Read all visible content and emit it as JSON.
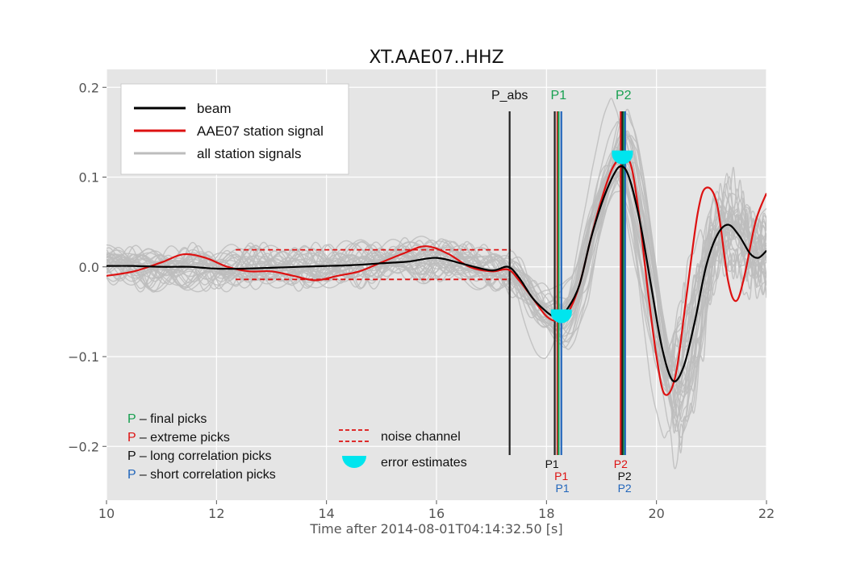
{
  "chart_data": {
    "type": "line",
    "title": "XT.AAE07..HHZ",
    "xlabel": "Time after 2014-08-01T04:14:32.50 [s]",
    "ylabel": "",
    "xlim": [
      10,
      22
    ],
    "ylim": [
      -0.26,
      0.22
    ],
    "xticks": [
      "10",
      "12",
      "14",
      "16",
      "18",
      "20",
      "22"
    ],
    "yticks": [
      "0.2",
      "0.1",
      "0.0",
      "−0.1",
      "−0.2"
    ],
    "grid": true,
    "legend_placement": "upper-left",
    "legend": [
      {
        "label": "beam",
        "color": "#000000"
      },
      {
        "label": "AAE07 station signal",
        "color": "#dd1111"
      },
      {
        "label": "all station signals",
        "color": "#bdbdbd"
      }
    ],
    "series": [
      {
        "name": "beam",
        "color": "#000000",
        "x": [
          10.0,
          10.5,
          11.0,
          11.5,
          12.0,
          12.5,
          13.0,
          13.5,
          14.0,
          14.5,
          15.0,
          15.5,
          16.0,
          16.5,
          17.0,
          17.3,
          17.5,
          17.75,
          18.0,
          18.15,
          18.25,
          18.4,
          18.6,
          18.8,
          19.0,
          19.2,
          19.35,
          19.5,
          19.7,
          19.9,
          20.1,
          20.3,
          20.5,
          20.7,
          20.9,
          21.1,
          21.3,
          21.5,
          21.7,
          21.85,
          22.0
        ],
        "y": [
          0.001,
          0.001,
          0.0,
          0.0,
          -0.002,
          -0.002,
          -0.001,
          0.0,
          0.001,
          0.002,
          0.004,
          0.006,
          0.01,
          0.003,
          -0.004,
          0.0,
          -0.012,
          -0.035,
          -0.05,
          -0.056,
          -0.055,
          -0.045,
          -0.02,
          0.03,
          0.07,
          0.1,
          0.112,
          0.1,
          0.05,
          -0.02,
          -0.09,
          -0.127,
          -0.11,
          -0.06,
          0.0,
          0.035,
          0.047,
          0.035,
          0.015,
          0.01,
          0.018
        ]
      },
      {
        "name": "AAE07 station signal",
        "color": "#dd1111",
        "x": [
          10.0,
          10.5,
          11.0,
          11.4,
          11.8,
          12.2,
          12.6,
          13.0,
          13.4,
          13.8,
          14.2,
          14.6,
          15.0,
          15.4,
          15.8,
          16.2,
          16.6,
          17.0,
          17.3,
          17.5,
          17.75,
          18.0,
          18.2,
          18.4,
          18.6,
          18.8,
          19.0,
          19.2,
          19.4,
          19.55,
          19.7,
          19.85,
          20.0,
          20.15,
          20.35,
          20.55,
          20.75,
          20.9,
          21.1,
          21.3,
          21.45,
          21.6,
          21.8,
          22.0
        ],
        "y": [
          -0.01,
          -0.005,
          0.005,
          0.014,
          0.01,
          0.0,
          -0.005,
          -0.005,
          -0.01,
          -0.015,
          -0.01,
          -0.005,
          0.005,
          0.015,
          0.023,
          0.015,
          0.0,
          -0.005,
          -0.003,
          -0.015,
          -0.035,
          -0.055,
          -0.06,
          -0.05,
          -0.02,
          0.03,
          0.075,
          0.11,
          0.123,
          0.11,
          0.05,
          -0.03,
          -0.1,
          -0.142,
          -0.12,
          -0.03,
          0.06,
          0.088,
          0.07,
          -0.015,
          -0.038,
          -0.01,
          0.05,
          0.082
        ]
      }
    ],
    "gray_color": "#bdbdbd",
    "noise_channel": {
      "x_start": 12.35,
      "x_end": 17.35,
      "upper": 0.019,
      "lower": -0.014,
      "color": "#dd1111"
    },
    "error_estimates": {
      "color": "#00e5ee",
      "markers": [
        {
          "x": 18.27,
          "y": -0.051
        },
        {
          "x": 19.38,
          "y": 0.126
        }
      ]
    },
    "pick_lines": [
      {
        "x": 17.33,
        "color": "#222222"
      },
      {
        "x": 18.15,
        "color": "#222222"
      },
      {
        "x": 18.2,
        "color": "#dd1111"
      },
      {
        "x": 18.22,
        "color": "#17a050"
      },
      {
        "x": 18.27,
        "color": "#2266bb"
      },
      {
        "x": 19.35,
        "color": "#dd1111"
      },
      {
        "x": 19.38,
        "color": "#222222"
      },
      {
        "x": 19.41,
        "color": "#17a050"
      },
      {
        "x": 19.43,
        "color": "#2266bb"
      }
    ],
    "pick_labels_top": [
      {
        "text": "P_abs",
        "x": 17.33,
        "color": "#111111"
      },
      {
        "text": "P1",
        "x": 18.22,
        "color": "#17a050"
      },
      {
        "text": "P2",
        "x": 19.4,
        "color": "#17a050"
      }
    ],
    "pick_labels_bottom": [
      {
        "text": "P1",
        "x": 18.1,
        "row": 0,
        "color": "#111111"
      },
      {
        "text": "P1",
        "x": 18.27,
        "row": 1,
        "color": "#dd1111"
      },
      {
        "text": "P1",
        "x": 18.29,
        "row": 2,
        "color": "#2266bb"
      },
      {
        "text": "P2",
        "x": 19.35,
        "row": 0,
        "color": "#dd1111"
      },
      {
        "text": "P2",
        "x": 19.42,
        "row": 1,
        "color": "#111111"
      },
      {
        "text": "P2",
        "x": 19.42,
        "row": 2,
        "color": "#2266bb"
      }
    ],
    "pick_type_notes": [
      {
        "symbol": "P",
        "text": " – final picks",
        "color": "#17a050"
      },
      {
        "symbol": "P",
        "text": " – extreme picks",
        "color": "#dd1111"
      },
      {
        "symbol": "P",
        "text": " – long correlation picks",
        "color": "#111111"
      },
      {
        "symbol": "P",
        "text": " – short correlation picks",
        "color": "#2266bb"
      }
    ],
    "extra_legend": [
      {
        "label": "noise channel",
        "kind": "dashed-pair",
        "color": "#dd1111"
      },
      {
        "label": "error estimates",
        "kind": "half-disc",
        "color": "#00e5ee"
      }
    ]
  }
}
